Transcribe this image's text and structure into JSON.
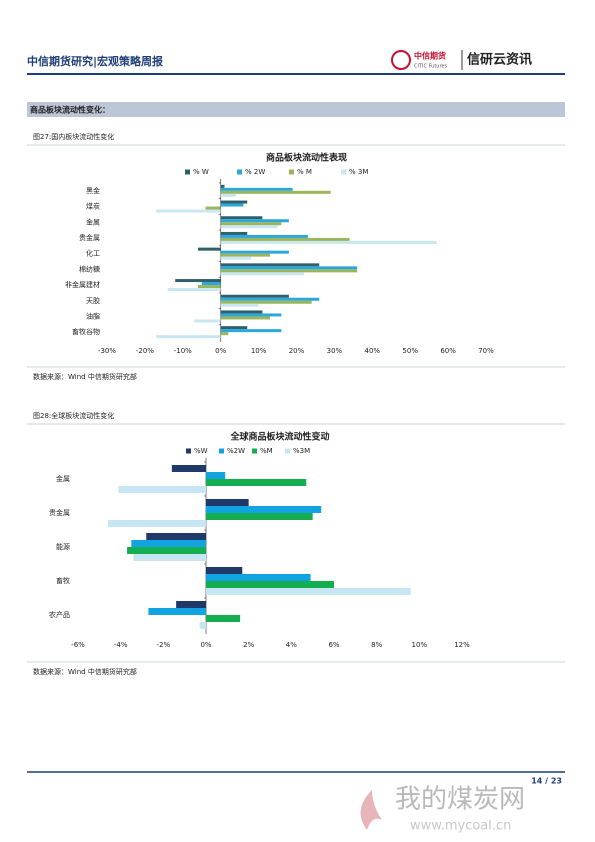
{
  "header": {
    "title": "中信期货研究|宏观策略周报",
    "logo_cn": "中信期货",
    "logo_en": "CITIC Futures",
    "brand": "信研云资讯"
  },
  "section_title": "商品板块流动性变化：",
  "figures": [
    {
      "caption": "图27:国内板块流动性变化",
      "source": "数据来源：Wind  中信期货研究部"
    },
    {
      "caption": "图28:全球板块流动性变化",
      "source": "数据来源：Wind  中信期货研究部"
    }
  ],
  "chart_data": [
    {
      "type": "bar",
      "orientation": "horizontal",
      "title": "商品板块流动性表现",
      "categories": [
        "黑金",
        "煤炭",
        "金属",
        "贵金属",
        "化工",
        "棉纺糖",
        "非金属建材",
        "天胶",
        "油脂",
        "畜牧谷物"
      ],
      "series": [
        {
          "name": "% W",
          "color": "#2f5f6b",
          "values": [
            1,
            7,
            11,
            7,
            -6,
            26,
            -12,
            18,
            11,
            7
          ]
        },
        {
          "name": "% 2W",
          "color": "#2aa7dc",
          "values": [
            19,
            6,
            18,
            23,
            18,
            36,
            -5,
            26,
            16,
            16
          ]
        },
        {
          "name": "% M",
          "color": "#9bb55a",
          "values": [
            29,
            -4,
            16,
            34,
            13,
            36,
            -6,
            24,
            13,
            2
          ]
        },
        {
          "name": "% 3M",
          "color": "#c9e7f2",
          "values": [
            4,
            -17,
            15,
            57,
            8,
            22,
            -14,
            10,
            -7,
            -17
          ]
        }
      ],
      "xlim": [
        -30,
        70
      ],
      "xticks": [
        {
          "value": -30,
          "label": "-30%"
        },
        {
          "value": -20,
          "label": "-20%"
        },
        {
          "value": -10,
          "label": "-10%"
        },
        {
          "value": 0,
          "label": "0%"
        },
        {
          "value": 10,
          "label": "10%"
        },
        {
          "value": 20,
          "label": "20%"
        },
        {
          "value": 30,
          "label": "30%"
        },
        {
          "value": 40,
          "label": "40%"
        },
        {
          "value": 50,
          "label": "50%"
        },
        {
          "value": 60,
          "label": "60%"
        },
        {
          "value": 70,
          "label": "70%"
        }
      ],
      "legend": "top",
      "grid": false
    },
    {
      "type": "bar",
      "orientation": "horizontal",
      "title": "全球商品板块流动性变动",
      "categories": [
        "金属",
        "贵金属",
        "能源",
        "畜牧",
        "农产品"
      ],
      "series": [
        {
          "name": "%W",
          "color": "#1f3a68",
          "values": [
            -1.6,
            2.0,
            -2.8,
            1.7,
            -1.4
          ]
        },
        {
          "name": "%2W",
          "color": "#12a3e3",
          "values": [
            0.9,
            5.4,
            -3.5,
            4.9,
            -2.7
          ]
        },
        {
          "name": "%M",
          "color": "#14ae50",
          "values": [
            4.7,
            5.0,
            -3.7,
            6.0,
            1.6
          ]
        },
        {
          "name": "%3M",
          "color": "#c7e6f3",
          "values": [
            -4.1,
            -4.6,
            -3.4,
            9.6,
            -0.3
          ]
        }
      ],
      "xlim": [
        -6,
        12
      ],
      "xticks": [
        {
          "value": -6,
          "label": "-6%"
        },
        {
          "value": -4,
          "label": "-4%"
        },
        {
          "value": -2,
          "label": "-2%"
        },
        {
          "value": 0,
          "label": "0%"
        },
        {
          "value": 2,
          "label": "2%"
        },
        {
          "value": 4,
          "label": "4%"
        },
        {
          "value": 6,
          "label": "6%"
        },
        {
          "value": 8,
          "label": "8%"
        },
        {
          "value": 10,
          "label": "10%"
        },
        {
          "value": 12,
          "label": "12%"
        }
      ],
      "legend": "top",
      "grid": false
    }
  ],
  "footer": {
    "page": "14 / 23"
  },
  "watermark": {
    "name": "我的煤炭网",
    "url": "www.mycoal.cn"
  }
}
